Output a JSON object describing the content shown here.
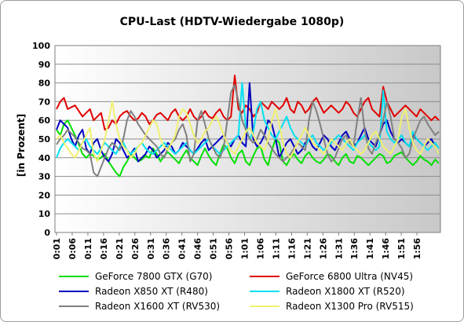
{
  "chart_data": {
    "type": "line",
    "title": "CPU-Last (HDTV-Wiedergabe 1080p)",
    "ylabel": "[in Prozent]",
    "xlabel": "",
    "ylim": [
      0,
      100
    ],
    "yticks": [
      "0",
      "10",
      "20",
      "30",
      "40",
      "50",
      "60",
      "70",
      "80",
      "90",
      "100"
    ],
    "xticks": [
      "0:01",
      "0:06",
      "0:11",
      "0:16",
      "0:21",
      "0:26",
      "0:31",
      "0:36",
      "0:41",
      "0:46",
      "0:51",
      "0:56",
      "1:01",
      "1:06",
      "1:11",
      "1:16",
      "1:21",
      "1:26",
      "1:31",
      "1:36",
      "1:41",
      "1:46",
      "1:51",
      "1:56"
    ],
    "grid": true,
    "legend_position": "bottom",
    "series": [
      {
        "name": "GeForce 7800 GTX (G70)",
        "color": "#00e000",
        "values": [
          55,
          52,
          58,
          60,
          56,
          52,
          47,
          42,
          40,
          42,
          41,
          39,
          40,
          42,
          38,
          35,
          32,
          30,
          35,
          38,
          42,
          40,
          38,
          39,
          41,
          40,
          45,
          42,
          38,
          41,
          43,
          41,
          39,
          37,
          41,
          44,
          40,
          38,
          36,
          41,
          45,
          41,
          38,
          36,
          42,
          47,
          45,
          40,
          37,
          42,
          44,
          38,
          36,
          41,
          45,
          46,
          39,
          36,
          44,
          50,
          48,
          38,
          36,
          40,
          42,
          39,
          37,
          41,
          43,
          40,
          38,
          37,
          39,
          42,
          41,
          38,
          36,
          40,
          42,
          38,
          37,
          41,
          40,
          38,
          36,
          38,
          40,
          42,
          41,
          37,
          38,
          41,
          42,
          43,
          40,
          38,
          36,
          38,
          41,
          39,
          38,
          36,
          39,
          37
        ]
      },
      {
        "name": "GeForce 6800 Ultra (NV45)",
        "color": "#e00000",
        "values": [
          66,
          70,
          72,
          66,
          67,
          68,
          65,
          62,
          64,
          66,
          60,
          62,
          64,
          55,
          56,
          60,
          58,
          62,
          64,
          65,
          62,
          60,
          61,
          64,
          62,
          58,
          60,
          63,
          64,
          62,
          60,
          64,
          66,
          62,
          60,
          62,
          66,
          62,
          60,
          62,
          65,
          62,
          61,
          64,
          66,
          62,
          60,
          62,
          84,
          66,
          64,
          68,
          66,
          62,
          64,
          70,
          68,
          66,
          70,
          68,
          66,
          68,
          72,
          66,
          64,
          70,
          68,
          64,
          66,
          70,
          72,
          68,
          64,
          66,
          68,
          66,
          64,
          66,
          70,
          68,
          64,
          62,
          66,
          70,
          72,
          66,
          64,
          62,
          78,
          70,
          66,
          62,
          64,
          66,
          68,
          66,
          64,
          62,
          66,
          64,
          62,
          60,
          62,
          60
        ]
      },
      {
        "name": "Radeon X850 XT (R480)",
        "color": "#0000c0",
        "values": [
          55,
          60,
          58,
          56,
          50,
          46,
          52,
          55,
          45,
          42,
          48,
          50,
          44,
          40,
          38,
          42,
          50,
          48,
          44,
          40,
          42,
          45,
          38,
          40,
          42,
          46,
          44,
          40,
          42,
          44,
          48,
          46,
          42,
          44,
          48,
          46,
          44,
          42,
          45,
          48,
          50,
          44,
          46,
          48,
          50,
          52,
          48,
          46,
          50,
          52,
          48,
          46,
          80,
          50,
          46,
          48,
          52,
          60,
          58,
          50,
          40,
          44,
          48,
          50,
          46,
          42,
          44,
          48,
          50,
          46,
          44,
          48,
          52,
          50,
          46,
          44,
          48,
          52,
          54,
          50,
          46,
          48,
          52,
          56,
          50,
          48,
          46,
          52,
          58,
          60,
          54,
          50,
          48,
          50,
          48,
          46,
          52,
          50,
          48,
          46,
          48,
          50,
          46,
          42
        ]
      },
      {
        "name": "Radeon X1800 XT (R520)",
        "color": "#00e0f0",
        "values": [
          40,
          45,
          48,
          50,
          48,
          46,
          44,
          48,
          50,
          46,
          44,
          42,
          45,
          48,
          46,
          44,
          42,
          46,
          48,
          44,
          42,
          44,
          46,
          48,
          45,
          43,
          42,
          44,
          46,
          48,
          46,
          44,
          42,
          44,
          46,
          48,
          44,
          42,
          44,
          46,
          48,
          50,
          46,
          44,
          42,
          44,
          46,
          48,
          50,
          52,
          80,
          56,
          50,
          54,
          66,
          70,
          60,
          56,
          52,
          50,
          54,
          58,
          62,
          56,
          52,
          50,
          48,
          46,
          50,
          52,
          48,
          46,
          44,
          46,
          48,
          50,
          52,
          50,
          48,
          46,
          44,
          48,
          50,
          52,
          48,
          46,
          44,
          46,
          76,
          54,
          50,
          48,
          50,
          52,
          48,
          46,
          54,
          50,
          48,
          46,
          44,
          46,
          48,
          45
        ]
      },
      {
        "name": "Radeon X1600 XT (RV530)",
        "color": "#808080",
        "values": [
          47,
          50,
          52,
          55,
          53,
          51,
          48,
          45,
          44,
          42,
          32,
          30,
          35,
          40,
          45,
          48,
          46,
          44,
          50,
          60,
          65,
          62,
          58,
          55,
          52,
          50,
          48,
          46,
          42,
          40,
          45,
          48,
          50,
          55,
          58,
          52,
          38,
          42,
          60,
          65,
          58,
          50,
          46,
          42,
          40,
          45,
          60,
          75,
          79,
          70,
          60,
          55,
          50,
          48,
          50,
          55,
          52,
          48,
          45,
          42,
          40,
          38,
          40,
          42,
          45,
          48,
          46,
          44,
          60,
          70,
          65,
          58,
          50,
          42,
          38,
          40,
          45,
          50,
          52,
          48,
          46,
          60,
          72,
          55,
          45,
          42,
          48,
          52,
          60,
          70,
          62,
          50,
          48,
          45,
          40,
          42,
          50,
          55,
          60,
          62,
          58,
          55,
          52,
          54
        ]
      },
      {
        "name": "Radeon X1300 Pro (RV515)",
        "color": "#f0f070",
        "values": [
          50,
          52,
          48,
          45,
          42,
          40,
          44,
          48,
          52,
          56,
          42,
          38,
          44,
          50,
          60,
          70,
          58,
          50,
          46,
          44,
          40,
          42,
          46,
          48,
          52,
          56,
          60,
          58,
          50,
          46,
          44,
          48,
          52,
          62,
          66,
          64,
          58,
          52,
          48,
          50,
          54,
          56,
          60,
          62,
          58,
          52,
          48,
          44,
          42,
          46,
          50,
          54,
          56,
          52,
          48,
          46,
          44,
          50,
          60,
          66,
          58,
          48,
          42,
          40,
          44,
          48,
          52,
          56,
          52,
          48,
          46,
          44,
          42,
          46,
          50,
          48,
          46,
          44,
          48,
          50,
          46,
          44,
          42,
          44,
          48,
          52,
          54,
          50,
          46,
          44,
          42,
          46,
          50,
          62,
          66,
          56,
          48,
          44,
          42,
          46,
          50,
          48,
          46,
          42
        ]
      }
    ]
  }
}
